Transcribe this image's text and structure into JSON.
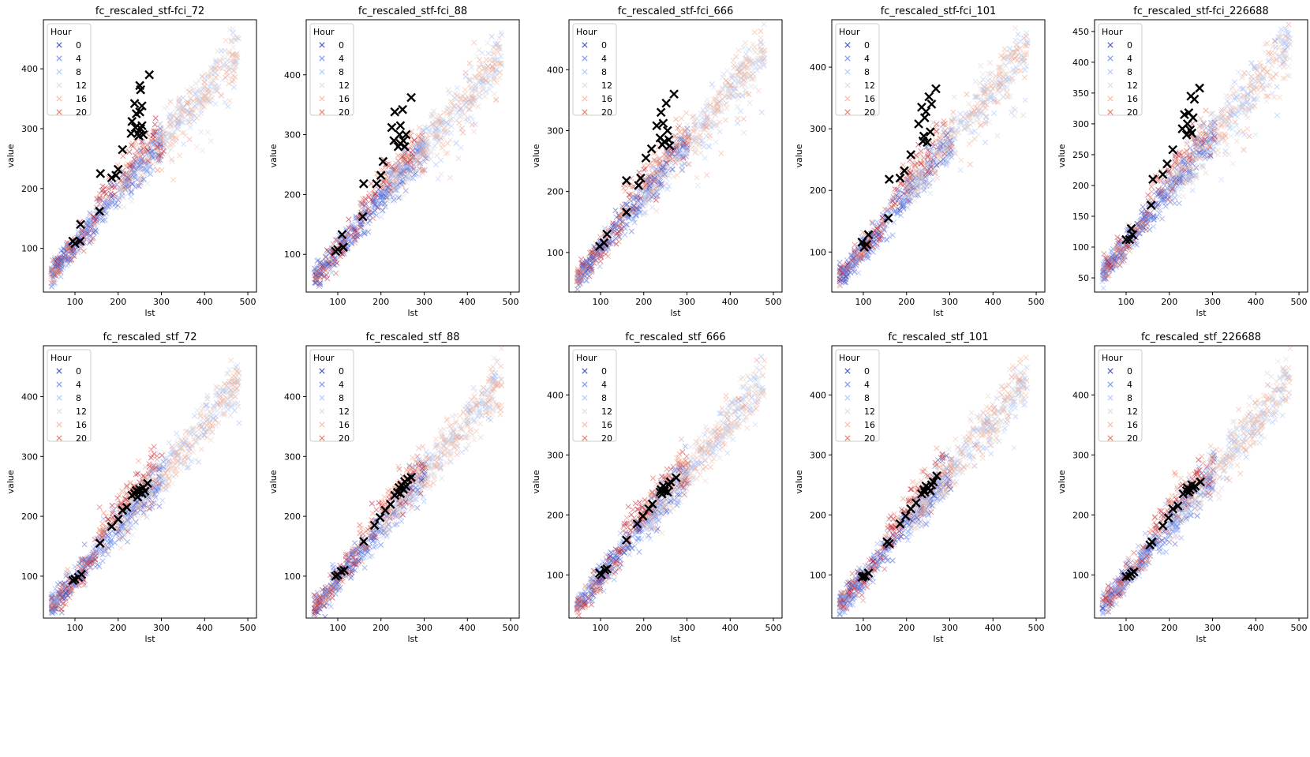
{
  "chart_data": {
    "type": "scatter",
    "layout": "grid 2 rows x 5 columns",
    "legend_title": "Hour",
    "legend_entries": [
      "0",
      "4",
      "8",
      "12",
      "16",
      "20"
    ],
    "legend_colors": [
      "#3b4cc0",
      "#6f92f3",
      "#aac7fd",
      "#dddcdc",
      "#f7b89c",
      "#e7745b"
    ],
    "highlight_color": "#000000",
    "xlabel": "lst",
    "ylabel": "value",
    "panels": [
      {
        "title": "fc_rescaled_stf-fci_72",
        "xlim": [
          27,
          520
        ],
        "ylim": [
          27,
          482
        ],
        "xticks": [
          100,
          200,
          300,
          400,
          500
        ],
        "yticks": [
          100,
          200,
          300,
          400
        ],
        "slope": 0.87,
        "intercept": 18,
        "highlight_points": [
          [
            95,
            112
          ],
          [
            100,
            108
          ],
          [
            112,
            112
          ],
          [
            113,
            140
          ],
          [
            157,
            162
          ],
          [
            159,
            225
          ],
          [
            185,
            218
          ],
          [
            195,
            222
          ],
          [
            200,
            232
          ],
          [
            210,
            265
          ],
          [
            230,
            292
          ],
          [
            232,
            312
          ],
          [
            238,
            342
          ],
          [
            240,
            302
          ],
          [
            242,
            325
          ],
          [
            245,
            292
          ],
          [
            248,
            288
          ],
          [
            250,
            372
          ],
          [
            250,
            328
          ],
          [
            252,
            365
          ],
          [
            252,
            300
          ],
          [
            255,
            338
          ],
          [
            255,
            305
          ],
          [
            258,
            290
          ],
          [
            272,
            390
          ]
        ]
      },
      {
        "title": "fc_rescaled_stf-fci_88",
        "xlim": [
          27,
          520
        ],
        "ylim": [
          37,
          492
        ],
        "xticks": [
          100,
          200,
          300,
          400,
          500
        ],
        "yticks": [
          100,
          200,
          300,
          400
        ],
        "slope": 0.87,
        "intercept": 18,
        "highlight_points": [
          [
            95,
            105
          ],
          [
            100,
            108
          ],
          [
            110,
            133
          ],
          [
            113,
            112
          ],
          [
            158,
            163
          ],
          [
            160,
            218
          ],
          [
            190,
            218
          ],
          [
            200,
            232
          ],
          [
            205,
            255
          ],
          [
            225,
            312
          ],
          [
            230,
            290
          ],
          [
            232,
            338
          ],
          [
            240,
            280
          ],
          [
            243,
            300
          ],
          [
            245,
            315
          ],
          [
            245,
            285
          ],
          [
            250,
            342
          ],
          [
            252,
            290
          ],
          [
            255,
            280
          ],
          [
            258,
            300
          ],
          [
            270,
            362
          ]
        ]
      },
      {
        "title": "fc_rescaled_stf-fci_666",
        "xlim": [
          27,
          520
        ],
        "ylim": [
          35,
          482
        ],
        "xticks": [
          100,
          200,
          300,
          400,
          500
        ],
        "yticks": [
          100,
          200,
          300,
          400
        ],
        "slope": 0.87,
        "intercept": 18,
        "highlight_points": [
          [
            98,
            110
          ],
          [
            108,
            116
          ],
          [
            115,
            130
          ],
          [
            160,
            166
          ],
          [
            160,
            218
          ],
          [
            188,
            210
          ],
          [
            193,
            222
          ],
          [
            205,
            255
          ],
          [
            218,
            270
          ],
          [
            230,
            308
          ],
          [
            238,
            288
          ],
          [
            240,
            330
          ],
          [
            243,
            277
          ],
          [
            245,
            312
          ],
          [
            248,
            282
          ],
          [
            252,
            345
          ],
          [
            255,
            300
          ],
          [
            258,
            285
          ],
          [
            260,
            275
          ],
          [
            270,
            360
          ]
        ]
      },
      {
        "title": "fc_rescaled_stf-fci_101",
        "xlim": [
          27,
          520
        ],
        "ylim": [
          35,
          477
        ],
        "xticks": [
          100,
          200,
          300,
          400,
          500
        ],
        "yticks": [
          100,
          200,
          300,
          400
        ],
        "slope": 0.87,
        "intercept": 18,
        "highlight_points": [
          [
            97,
            116
          ],
          [
            102,
            108
          ],
          [
            108,
            112
          ],
          [
            112,
            128
          ],
          [
            158,
            155
          ],
          [
            160,
            218
          ],
          [
            185,
            220
          ],
          [
            195,
            232
          ],
          [
            210,
            258
          ],
          [
            228,
            308
          ],
          [
            235,
            335
          ],
          [
            238,
            280
          ],
          [
            240,
            288
          ],
          [
            242,
            318
          ],
          [
            245,
            328
          ],
          [
            248,
            278
          ],
          [
            252,
            352
          ],
          [
            255,
            295
          ],
          [
            258,
            340
          ],
          [
            268,
            365
          ]
        ]
      },
      {
        "title": "fc_rescaled_stf-fci_226688",
        "xlim": [
          27,
          520
        ],
        "ylim": [
          27,
          469
        ],
        "xticks": [
          100,
          200,
          300,
          400,
          500
        ],
        "yticks": [
          50,
          100,
          150,
          200,
          250,
          300,
          350,
          400,
          450
        ],
        "slope": 0.87,
        "intercept": 18,
        "highlight_points": [
          [
            100,
            112
          ],
          [
            108,
            112
          ],
          [
            112,
            130
          ],
          [
            115,
            120
          ],
          [
            158,
            168
          ],
          [
            162,
            210
          ],
          [
            185,
            218
          ],
          [
            195,
            235
          ],
          [
            208,
            258
          ],
          [
            230,
            292
          ],
          [
            235,
            315
          ],
          [
            240,
            282
          ],
          [
            242,
            300
          ],
          [
            245,
            318
          ],
          [
            248,
            290
          ],
          [
            250,
            345
          ],
          [
            252,
            285
          ],
          [
            255,
            310
          ],
          [
            258,
            340
          ],
          [
            270,
            358
          ]
        ]
      },
      {
        "title": "fc_rescaled_stf_72",
        "xlim": [
          27,
          520
        ],
        "ylim": [
          30,
          485
        ],
        "xticks": [
          100,
          200,
          300,
          400,
          500
        ],
        "yticks": [
          100,
          200,
          300,
          400
        ],
        "slope": 0.87,
        "intercept": 8,
        "highlight_points": [
          [
            95,
            93
          ],
          [
            100,
            95
          ],
          [
            108,
            98
          ],
          [
            115,
            103
          ],
          [
            158,
            155
          ],
          [
            185,
            183
          ],
          [
            200,
            195
          ],
          [
            210,
            210
          ],
          [
            220,
            215
          ],
          [
            232,
            235
          ],
          [
            238,
            238
          ],
          [
            242,
            243
          ],
          [
            245,
            232
          ],
          [
            248,
            240
          ],
          [
            250,
            245
          ],
          [
            255,
            238
          ],
          [
            258,
            248
          ],
          [
            262,
            242
          ],
          [
            268,
            255
          ]
        ]
      },
      {
        "title": "fc_rescaled_stf_88",
        "xlim": [
          27,
          520
        ],
        "ylim": [
          30,
          485
        ],
        "xticks": [
          100,
          200,
          300,
          400,
          500
        ],
        "yticks": [
          100,
          200,
          300,
          400
        ],
        "slope": 0.87,
        "intercept": 8,
        "highlight_points": [
          [
            95,
            100
          ],
          [
            100,
            102
          ],
          [
            108,
            108
          ],
          [
            115,
            110
          ],
          [
            160,
            158
          ],
          [
            185,
            185
          ],
          [
            198,
            198
          ],
          [
            210,
            210
          ],
          [
            222,
            220
          ],
          [
            232,
            235
          ],
          [
            238,
            240
          ],
          [
            242,
            248
          ],
          [
            245,
            238
          ],
          [
            248,
            252
          ],
          [
            252,
            245
          ],
          [
            255,
            258
          ],
          [
            258,
            250
          ],
          [
            262,
            262
          ],
          [
            270,
            265
          ]
        ]
      },
      {
        "title": "fc_rescaled_stf_666",
        "xlim": [
          27,
          520
        ],
        "ylim": [
          28,
          482
        ],
        "xticks": [
          100,
          200,
          300,
          400,
          500
        ],
        "yticks": [
          100,
          200,
          300,
          400
        ],
        "slope": 0.87,
        "intercept": 8,
        "highlight_points": [
          [
            98,
            103
          ],
          [
            102,
            100
          ],
          [
            110,
            108
          ],
          [
            115,
            110
          ],
          [
            160,
            158
          ],
          [
            185,
            185
          ],
          [
            198,
            198
          ],
          [
            212,
            210
          ],
          [
            220,
            218
          ],
          [
            238,
            238
          ],
          [
            240,
            242
          ],
          [
            242,
            235
          ],
          [
            245,
            248
          ],
          [
            248,
            240
          ],
          [
            250,
            245
          ],
          [
            255,
            238
          ],
          [
            258,
            250
          ],
          [
            262,
            255
          ],
          [
            275,
            262
          ]
        ]
      },
      {
        "title": "fc_rescaled_stf_101",
        "xlim": [
          27,
          520
        ],
        "ylim": [
          28,
          482
        ],
        "xticks": [
          100,
          200,
          300,
          400,
          500
        ],
        "yticks": [
          100,
          200,
          300,
          400
        ],
        "slope": 0.87,
        "intercept": 8,
        "highlight_points": [
          [
            97,
            96
          ],
          [
            100,
            98
          ],
          [
            105,
            98
          ],
          [
            112,
            103
          ],
          [
            155,
            155
          ],
          [
            160,
            152
          ],
          [
            185,
            185
          ],
          [
            198,
            198
          ],
          [
            210,
            210
          ],
          [
            222,
            220
          ],
          [
            235,
            235
          ],
          [
            240,
            242
          ],
          [
            242,
            238
          ],
          [
            245,
            248
          ],
          [
            250,
            245
          ],
          [
            255,
            240
          ],
          [
            258,
            250
          ],
          [
            262,
            255
          ],
          [
            270,
            265
          ]
        ]
      },
      {
        "title": "fc_rescaled_stf_226688",
        "xlim": [
          27,
          520
        ],
        "ylim": [
          28,
          482
        ],
        "xticks": [
          100,
          200,
          300,
          400,
          500
        ],
        "yticks": [
          100,
          200,
          300,
          400
        ],
        "slope": 0.87,
        "intercept": 8,
        "highlight_points": [
          [
            100,
            97
          ],
          [
            108,
            98
          ],
          [
            112,
            102
          ],
          [
            118,
            105
          ],
          [
            155,
            150
          ],
          [
            160,
            155
          ],
          [
            185,
            182
          ],
          [
            198,
            195
          ],
          [
            208,
            210
          ],
          [
            220,
            215
          ],
          [
            232,
            235
          ],
          [
            240,
            240
          ],
          [
            242,
            245
          ],
          [
            245,
            238
          ],
          [
            248,
            242
          ],
          [
            252,
            250
          ],
          [
            255,
            245
          ],
          [
            260,
            248
          ],
          [
            272,
            255
          ]
        ]
      }
    ]
  }
}
